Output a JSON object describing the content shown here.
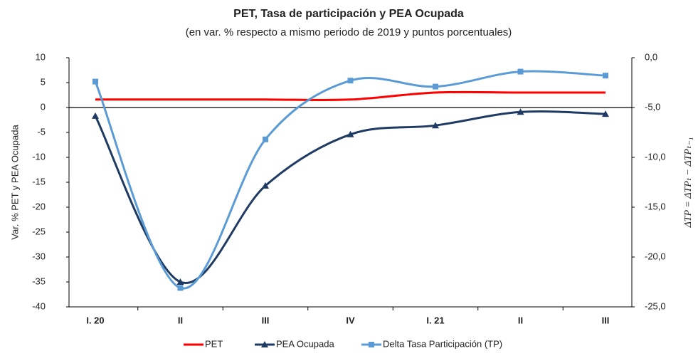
{
  "chart_data": {
    "type": "line",
    "title": "PET, Tasa de participación y PEA Ocupada",
    "subtitle": "(en var. % respecto a mismo periodo de 2019 y puntos porcentuales)",
    "y_label": "Var. % PET y PEA Ocupada",
    "y2_label": "ΔTP = ΔTPₜ − ΔTPₜ₋₁",
    "categories": [
      "I. 20",
      "II",
      "III",
      "IV",
      "I. 21",
      "II",
      "III"
    ],
    "ylim": [
      -40,
      10
    ],
    "yticks": [
      -40,
      -35,
      -30,
      -25,
      -20,
      -15,
      -10,
      -5,
      0,
      5,
      10
    ],
    "y2lim": [
      -25,
      0
    ],
    "y2ticks": [
      {
        "value": -25,
        "label": "-25,0"
      },
      {
        "value": -20,
        "label": "-20,0"
      },
      {
        "value": -15,
        "label": "-15,0"
      },
      {
        "value": -10,
        "label": "-10,0"
      },
      {
        "value": -5,
        "label": "-5,0"
      },
      {
        "value": 0,
        "label": "0,0"
      }
    ],
    "series": [
      {
        "name": "PET",
        "color": "#ff0000",
        "marker": "none",
        "values": [
          1.6,
          1.6,
          1.6,
          1.6,
          3.0,
          3.0,
          3.0
        ]
      },
      {
        "name": "PEA Ocupada",
        "color": "#1f3b63",
        "marker": "triangle",
        "values": [
          -1.7,
          -35.0,
          -15.7,
          -5.4,
          -3.6,
          -0.9,
          -1.3
        ]
      },
      {
        "name": "Delta Tasa Participación (TP)",
        "color": "#5b9bd5",
        "marker": "square",
        "axis": "y2",
        "values": [
          -2.4,
          -23.1,
          -8.2,
          -2.3,
          -2.9,
          -1.4,
          -1.8
        ]
      }
    ]
  }
}
